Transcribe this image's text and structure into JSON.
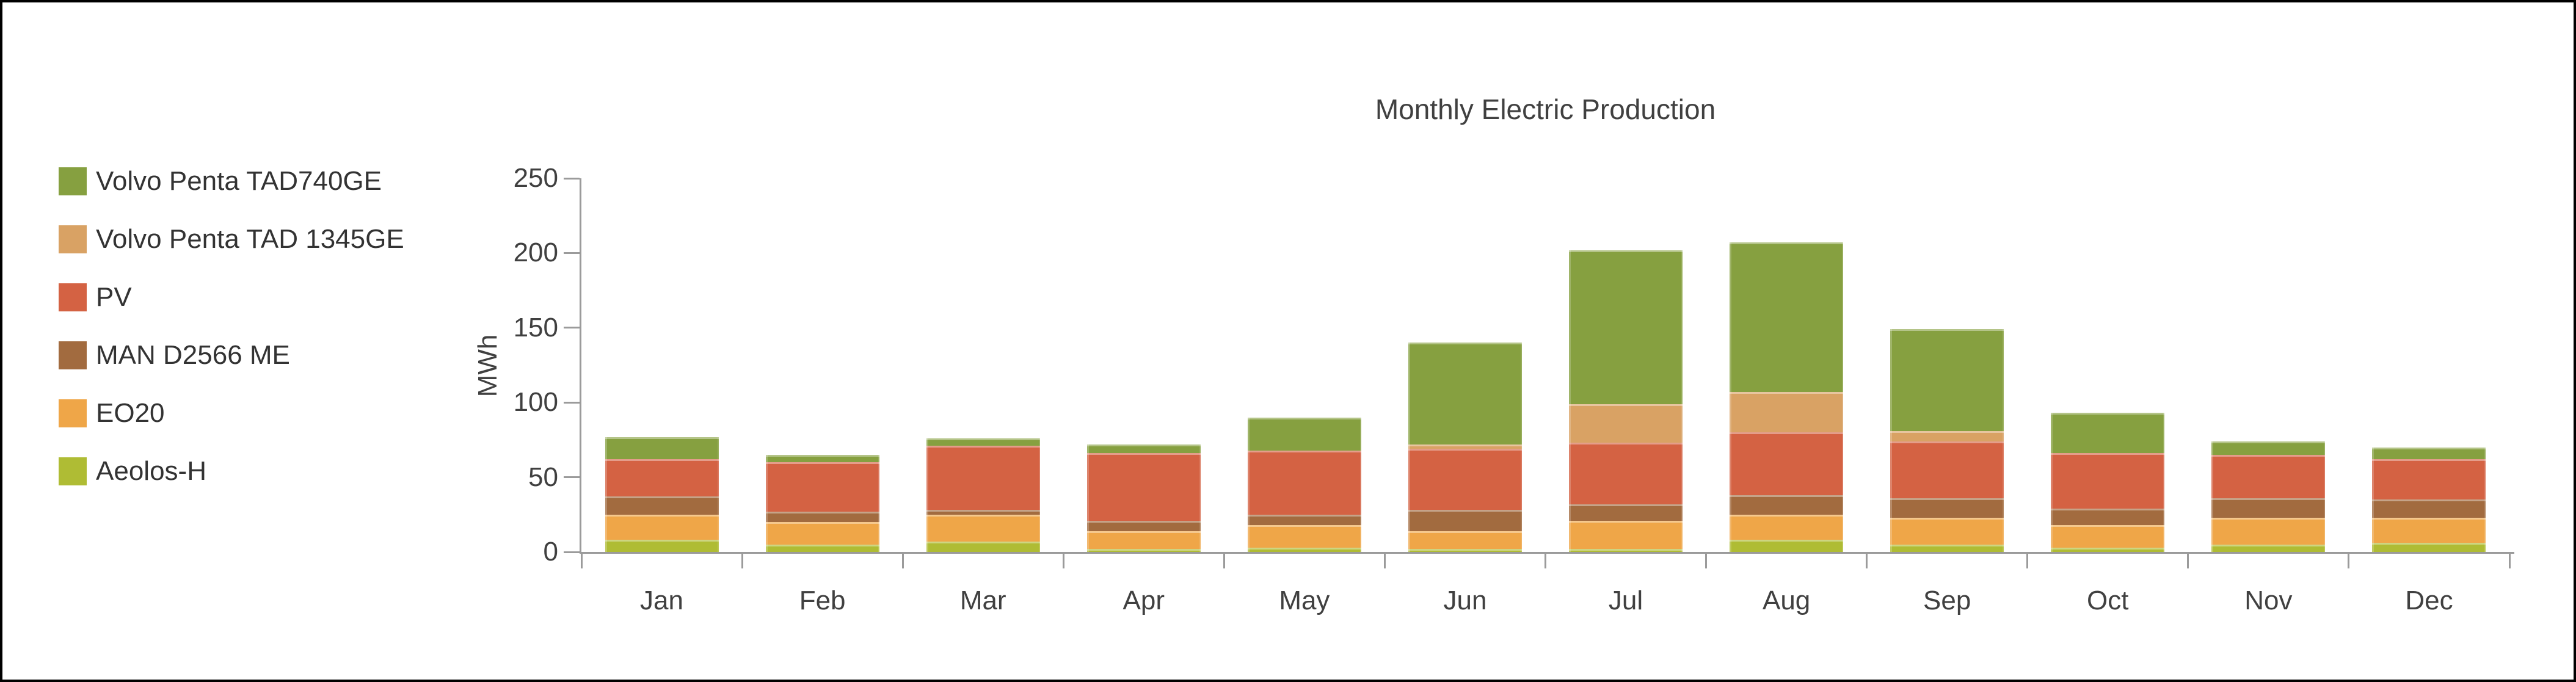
{
  "figure": {
    "title": "Monthly Electric Production",
    "background_color": "#ffffff",
    "border_color": "#000000",
    "axis_color": "#9b9b9b",
    "text_color": "#404040"
  },
  "chart_data": {
    "type": "bar",
    "stacked": true,
    "title": "Monthly Electric Production",
    "xlabel": "",
    "ylabel": "MWh",
    "unit": "MWh",
    "ylim": [
      0,
      250
    ],
    "y_ticks": [
      0,
      50,
      100,
      150,
      200,
      250
    ],
    "grid": false,
    "legend_position": "left",
    "categories": [
      "Jan",
      "Feb",
      "Mar",
      "Apr",
      "May",
      "Jun",
      "Jul",
      "Aug",
      "Sep",
      "Oct",
      "Nov",
      "Dec"
    ],
    "series": [
      {
        "name": "Aeolos-H",
        "color": "#AFBC34",
        "values": [
          8,
          5,
          7,
          2,
          3,
          2,
          2,
          8,
          5,
          3,
          5,
          6
        ]
      },
      {
        "name": "EO20",
        "color": "#EFA648",
        "values": [
          17,
          15,
          18,
          12,
          15,
          12,
          19,
          17,
          18,
          15,
          18,
          17
        ]
      },
      {
        "name": "MAN D2566 ME",
        "color": "#A26B3F",
        "values": [
          12,
          7,
          3,
          7,
          7,
          14,
          11,
          13,
          13,
          11,
          13,
          12
        ]
      },
      {
        "name": "PV",
        "color": "#D46243",
        "values": [
          25,
          33,
          43,
          45,
          43,
          41,
          41,
          42,
          38,
          37,
          29,
          27
        ]
      },
      {
        "name": "Volvo Penta TAD 1345GE",
        "color": "#D9A264",
        "values": [
          0,
          0,
          0,
          0,
          0,
          3,
          26,
          27,
          7,
          0,
          0,
          0
        ]
      },
      {
        "name": "Volvo Penta TAD740GE",
        "color": "#86A040",
        "values": [
          15,
          5,
          5,
          6,
          22,
          68,
          103,
          100,
          68,
          27,
          9,
          8
        ]
      }
    ],
    "totals": [
      77,
      65,
      76,
      72,
      90,
      140,
      202,
      207,
      149,
      93,
      74,
      70
    ],
    "legend_order_top_to_bottom": [
      "Volvo Penta TAD740GE",
      "Volvo Penta TAD 1345GE",
      "PV",
      "MAN D2566 ME",
      "EO20",
      "Aeolos-H"
    ]
  }
}
